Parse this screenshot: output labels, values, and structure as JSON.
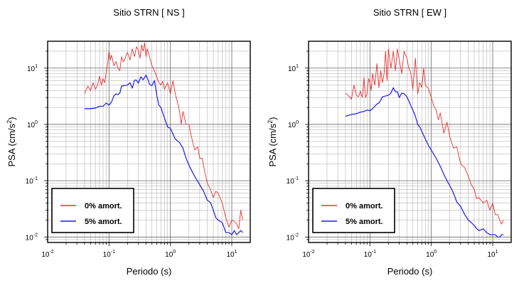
{
  "legend": {
    "series0": "0% amort.",
    "series1": "5% amort."
  },
  "colors": {
    "series0": "#e8312e",
    "series1": "#1a1aeb",
    "frame": "#000000",
    "grid": "#7f7f7f"
  },
  "axes_common": {
    "xlabel": "Periodo (s)",
    "ylabel_main": "PSA (cm/s",
    "ylabel_sup": "2",
    "ylabel_close": ")",
    "x_scale": "log",
    "y_scale": "log",
    "xlim": [
      0.01,
      20
    ],
    "ylim": [
      0.008,
      30
    ],
    "x_ticks": [
      {
        "base": "10",
        "exp": "-2"
      },
      {
        "base": "10",
        "exp": "-1"
      },
      {
        "base": "10",
        "exp": "0"
      },
      {
        "base": "10",
        "exp": "1"
      }
    ],
    "y_ticks": [
      {
        "base": "10",
        "exp": "-2"
      },
      {
        "base": "10",
        "exp": "-1"
      },
      {
        "base": "10",
        "exp": "0"
      },
      {
        "base": "10",
        "exp": "1"
      }
    ],
    "grid": "on",
    "legend_position": "bottom-left"
  },
  "chart_data": [
    {
      "type": "line",
      "title": "Sitio STRN [ NS ]",
      "xlabel": "Periodo (s)",
      "ylabel": "PSA (cm/s2)",
      "xlim": [
        0.01,
        20
      ],
      "ylim": [
        0.008,
        30
      ],
      "series": [
        {
          "name": "0% amort.",
          "x": [
            0.04,
            0.045,
            0.05,
            0.055,
            0.06,
            0.065,
            0.07,
            0.075,
            0.08,
            0.085,
            0.09,
            0.095,
            0.1,
            0.105,
            0.11,
            0.12,
            0.13,
            0.14,
            0.15,
            0.16,
            0.17,
            0.18,
            0.19,
            0.2,
            0.22,
            0.24,
            0.26,
            0.28,
            0.3,
            0.32,
            0.34,
            0.36,
            0.38,
            0.4,
            0.42,
            0.45,
            0.48,
            0.5,
            0.55,
            0.6,
            0.65,
            0.7,
            0.75,
            0.8,
            0.9,
            1.0,
            1.1,
            1.2,
            1.3,
            1.4,
            1.5,
            1.6,
            1.8,
            2.0,
            2.2,
            2.5,
            2.8,
            3.0,
            3.3,
            3.6,
            4.0,
            4.5,
            5.0,
            5.5,
            6.0,
            7.0,
            8.0,
            9.0,
            10.0,
            11.0,
            12.0,
            13.0,
            14.0,
            15.0
          ],
          "y": [
            3.5,
            4.8,
            4.0,
            5.5,
            4.2,
            5.0,
            7.2,
            5.0,
            6.5,
            5.5,
            8.5,
            12,
            20,
            14,
            17,
            11,
            13,
            10,
            9,
            16,
            13,
            14,
            17,
            19,
            14,
            22,
            16,
            24,
            21,
            15,
            26,
            20,
            28,
            16,
            22,
            17,
            13,
            11,
            9,
            7,
            5.5,
            5.0,
            5.8,
            4.2,
            5.5,
            3.5,
            6,
            3.5,
            2.5,
            1.8,
            1.0,
            1.7,
            1.0,
            1.0,
            0.6,
            0.35,
            0.4,
            0.25,
            0.25,
            0.15,
            0.09,
            0.07,
            0.05,
            0.065,
            0.06,
            0.04,
            0.022,
            0.015,
            0.02,
            0.019,
            0.017,
            0.014,
            0.03,
            0.02
          ]
        },
        {
          "name": "5% amort.",
          "x": [
            0.04,
            0.05,
            0.06,
            0.07,
            0.08,
            0.09,
            0.1,
            0.11,
            0.12,
            0.13,
            0.14,
            0.15,
            0.16,
            0.18,
            0.2,
            0.22,
            0.24,
            0.26,
            0.28,
            0.3,
            0.33,
            0.36,
            0.4,
            0.43,
            0.46,
            0.5,
            0.55,
            0.6,
            0.65,
            0.7,
            0.8,
            0.9,
            1.0,
            1.2,
            1.4,
            1.6,
            1.8,
            2.0,
            2.3,
            2.6,
            3.0,
            3.5,
            4.0,
            4.5,
            5.0,
            5.5,
            6.0,
            7.0,
            8.0,
            9.0,
            10.0,
            11.0,
            12.0,
            13.0,
            14.0,
            15.0
          ],
          "y": [
            1.9,
            1.9,
            1.95,
            2.1,
            2.1,
            2.4,
            2.2,
            2.5,
            3.2,
            3.5,
            3.4,
            3.6,
            4.8,
            4.9,
            5.0,
            5.5,
            4.4,
            6.1,
            6.1,
            5.4,
            7.0,
            6.2,
            7.5,
            6.3,
            5.1,
            4.9,
            6.0,
            3.3,
            2.2,
            2.0,
            1.3,
            0.9,
            0.85,
            0.55,
            0.48,
            0.38,
            0.25,
            0.19,
            0.14,
            0.11,
            0.085,
            0.064,
            0.045,
            0.041,
            0.03,
            0.022,
            0.02,
            0.018,
            0.012,
            0.012,
            0.011,
            0.013,
            0.011,
            0.012,
            0.013,
            0.012
          ]
        }
      ]
    },
    {
      "type": "line",
      "title": "Sitio STRN [ EW ]",
      "xlabel": "Periodo (s)",
      "ylabel": "PSA (cm/s2)",
      "xlim": [
        0.01,
        20
      ],
      "ylim": [
        0.008,
        30
      ],
      "series": [
        {
          "name": "0% amort.",
          "x": [
            0.04,
            0.045,
            0.05,
            0.055,
            0.06,
            0.065,
            0.07,
            0.075,
            0.08,
            0.085,
            0.09,
            0.095,
            0.1,
            0.105,
            0.11,
            0.12,
            0.13,
            0.14,
            0.15,
            0.16,
            0.17,
            0.18,
            0.19,
            0.2,
            0.22,
            0.24,
            0.26,
            0.28,
            0.3,
            0.33,
            0.36,
            0.4,
            0.43,
            0.46,
            0.5,
            0.55,
            0.6,
            0.65,
            0.7,
            0.75,
            0.8,
            0.9,
            1.0,
            1.1,
            1.2,
            1.3,
            1.4,
            1.6,
            1.8,
            2.0,
            2.3,
            2.6,
            3.0,
            3.5,
            4.0,
            4.5,
            5.0,
            5.5,
            6.0,
            7.0,
            8.0,
            9.0,
            10.0,
            11.0,
            12.0,
            13.0,
            14.0,
            15.0
          ],
          "y": [
            3.6,
            3.2,
            2.8,
            5.0,
            3.3,
            3.1,
            3.9,
            3.0,
            6.8,
            3.0,
            3.5,
            6.5,
            5.5,
            4.0,
            8.0,
            5.0,
            12,
            4.5,
            9.0,
            5.5,
            8.0,
            20,
            6.0,
            22,
            10,
            20,
            9,
            22,
            14,
            8,
            20,
            15,
            10,
            8.5,
            4.2,
            15,
            3.5,
            5.5,
            4.5,
            10,
            5.0,
            4.3,
            3.0,
            2.1,
            1.8,
            1.2,
            1.6,
            0.7,
            1.1,
            0.6,
            0.38,
            0.4,
            0.2,
            0.17,
            0.12,
            0.085,
            0.07,
            0.048,
            0.05,
            0.04,
            0.045,
            0.03,
            0.04,
            0.025,
            0.025,
            0.02,
            0.017,
            0.02
          ]
        },
        {
          "name": "5% amort.",
          "x": [
            0.04,
            0.05,
            0.06,
            0.07,
            0.08,
            0.09,
            0.1,
            0.11,
            0.12,
            0.13,
            0.14,
            0.15,
            0.16,
            0.18,
            0.2,
            0.22,
            0.24,
            0.26,
            0.28,
            0.3,
            0.33,
            0.36,
            0.4,
            0.43,
            0.46,
            0.5,
            0.55,
            0.6,
            0.65,
            0.7,
            0.8,
            0.9,
            1.0,
            1.2,
            1.4,
            1.6,
            1.8,
            2.0,
            2.3,
            2.6,
            3.0,
            3.5,
            4.0,
            4.5,
            5.0,
            5.5,
            6.0,
            7.0,
            8.0,
            9.0,
            10.0,
            11.0,
            12.0,
            13.0,
            14.0,
            15.0
          ],
          "y": [
            1.4,
            1.5,
            1.55,
            1.65,
            1.7,
            1.8,
            1.75,
            1.9,
            2.1,
            2.3,
            2.4,
            2.7,
            3.1,
            3.2,
            3.3,
            3.6,
            4.5,
            3.8,
            3.8,
            3.0,
            3.6,
            3.5,
            3.1,
            2.6,
            2.2,
            1.8,
            1.4,
            1.0,
            0.9,
            0.75,
            0.55,
            0.42,
            0.35,
            0.25,
            0.18,
            0.13,
            0.1,
            0.082,
            0.06,
            0.042,
            0.035,
            0.025,
            0.02,
            0.018,
            0.016,
            0.014,
            0.013,
            0.014,
            0.012,
            0.011,
            0.011,
            0.011,
            0.01,
            0.01,
            0.011,
            0.011
          ]
        }
      ]
    }
  ]
}
